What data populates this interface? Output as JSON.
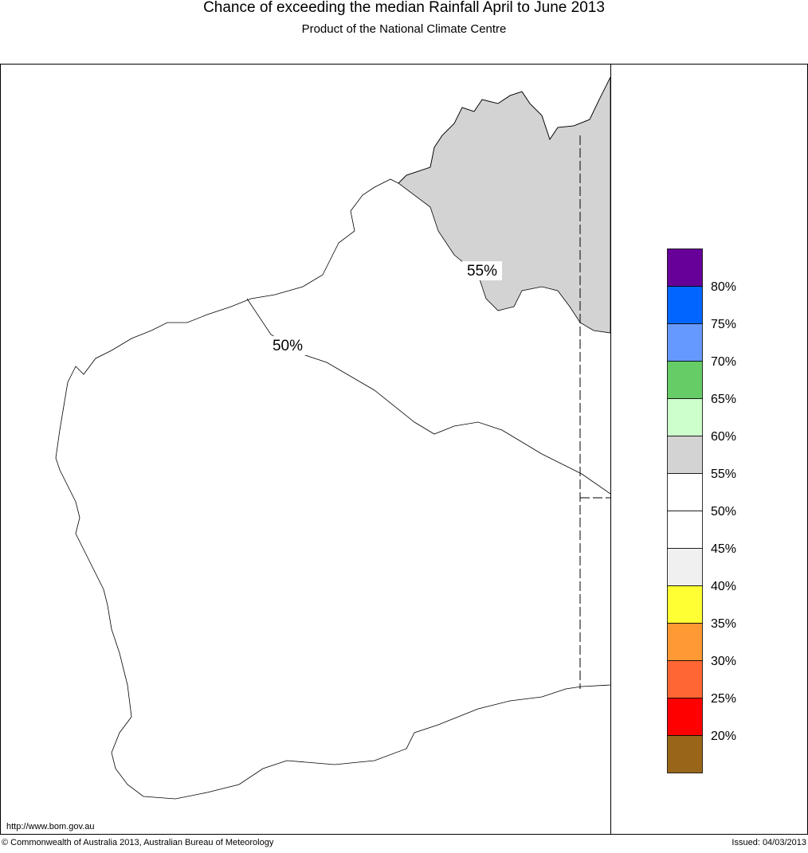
{
  "header": {
    "title": "Chance of exceeding the median Rainfall April to June 2013",
    "subtitle": "Product of the National Climate Centre"
  },
  "map": {
    "contour_labels": [
      "55%",
      "50%"
    ]
  },
  "legend": {
    "colors": [
      "#660099",
      "#0066ff",
      "#6699ff",
      "#66cc66",
      "#ccffcc",
      "#d3d3d3",
      "#ffffff",
      "#ffffff",
      "#f0f0f0",
      "#ffff33",
      "#ff9933",
      "#ff6633",
      "#ff0000",
      "#996619"
    ],
    "labels": [
      "80%",
      "75%",
      "70%",
      "65%",
      "60%",
      "55%",
      "50%",
      "45%",
      "40%",
      "35%",
      "30%",
      "25%",
      "20%"
    ]
  },
  "footer": {
    "url": "http://www.bom.gov.au",
    "copyright": "© Commonwealth of Australia 2013, Australian Bureau of Meteorology",
    "issued": "Issued: 04/03/2013"
  }
}
